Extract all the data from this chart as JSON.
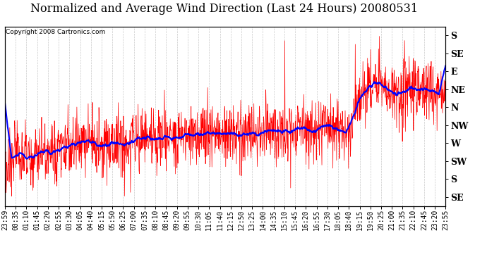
{
  "title": "Normalized and Average Wind Direction (Last 24 Hours) 20080531",
  "copyright": "Copyright 2008 Cartronics.com",
  "y_labels": [
    "S",
    "SE",
    "E",
    "NE",
    "N",
    "NW",
    "W",
    "SW",
    "S",
    "SE"
  ],
  "y_values": [
    0,
    1,
    2,
    3,
    4,
    5,
    6,
    7,
    8,
    9
  ],
  "x_tick_labels": [
    "23:59",
    "00:35",
    "01:10",
    "01:45",
    "02:20",
    "02:55",
    "03:30",
    "04:05",
    "04:40",
    "05:15",
    "05:50",
    "06:25",
    "07:00",
    "07:35",
    "08:10",
    "08:45",
    "09:20",
    "09:55",
    "10:30",
    "11:05",
    "11:40",
    "12:15",
    "12:50",
    "13:25",
    "14:00",
    "14:35",
    "15:10",
    "15:45",
    "16:20",
    "16:55",
    "17:30",
    "18:05",
    "18:40",
    "19:15",
    "19:50",
    "20:25",
    "21:00",
    "21:35",
    "22:10",
    "22:45",
    "23:20",
    "23:55"
  ],
  "bg_color": "#ffffff",
  "plot_bg_color": "#ffffff",
  "grid_color": "#bbbbbb",
  "red_line_color": "#ff0000",
  "blue_line_color": "#0000ff",
  "title_fontsize": 11.5,
  "copyright_fontsize": 6.5,
  "tick_fontsize": 7,
  "y_label_fontsize": 9
}
